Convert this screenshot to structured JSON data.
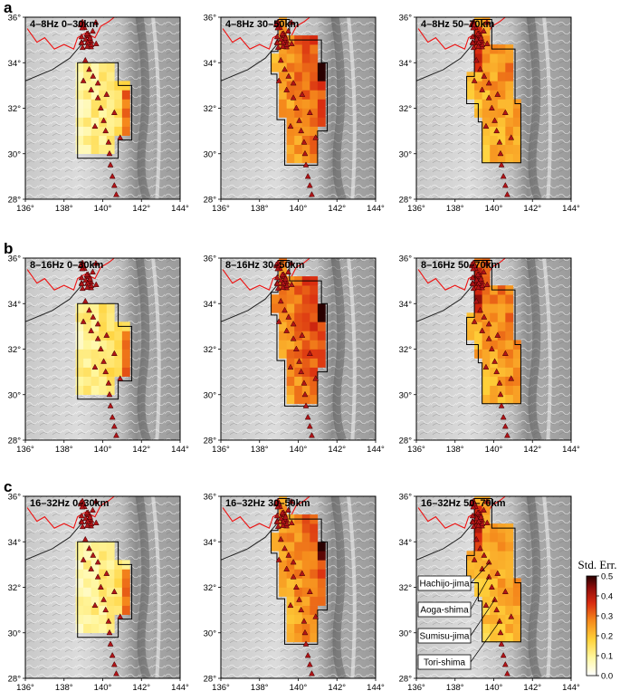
{
  "rows": [
    {
      "label": "a",
      "band": "4–8Hz"
    },
    {
      "label": "b",
      "band": "8–16Hz"
    },
    {
      "label": "c",
      "band": "16–32Hz"
    }
  ],
  "panels": [
    {
      "title": "4–8Hz 0–30km"
    },
    {
      "title": "4–8Hz 30–50km"
    },
    {
      "title": "4–8Hz 50–70km"
    },
    {
      "title": "8–16Hz 0–30km"
    },
    {
      "title": "8–16Hz 30–50km"
    },
    {
      "title": "8–16Hz 50–70km"
    },
    {
      "title": "16–32Hz 0–30km"
    },
    {
      "title": "16–32Hz 30–50km"
    },
    {
      "title": "16–32Hz 50–70km"
    }
  ],
  "axes": {
    "lon_ticks": [
      "136°",
      "138°",
      "140°",
      "142°",
      "144°"
    ],
    "lat_ticks": [
      "28°",
      "30°",
      "32°",
      "34°",
      "36°"
    ],
    "lon_range": [
      136,
      144
    ],
    "lat_range": [
      28,
      36
    ]
  },
  "colorbar": {
    "title": "Std. Err.",
    "ticks": [
      "0.0",
      "0.1",
      "0.2",
      "0.3",
      "0.4",
      "0.5"
    ],
    "range": [
      0,
      0.5
    ],
    "stops": [
      "#ffffff",
      "#fff7a0",
      "#ffd23a",
      "#f58a1c",
      "#d82a10",
      "#8e0d0b",
      "#2a0000"
    ]
  },
  "islands": [
    {
      "name": "Hachijo-jima",
      "lon": 139.8,
      "lat": 33.1
    },
    {
      "name": "Aoga-shima",
      "lon": 139.75,
      "lat": 32.45
    },
    {
      "name": "Sumisu-jima",
      "lon": 140.05,
      "lat": 31.45
    },
    {
      "name": "Tori-shima",
      "lon": 140.3,
      "lat": 30.5
    }
  ],
  "colors": {
    "coast": "#ee1111",
    "station": "#b01418",
    "station_edge": "#3a0000",
    "relief_light": "#d9d9d9",
    "relief_dark": "#7a7a7a"
  }
}
